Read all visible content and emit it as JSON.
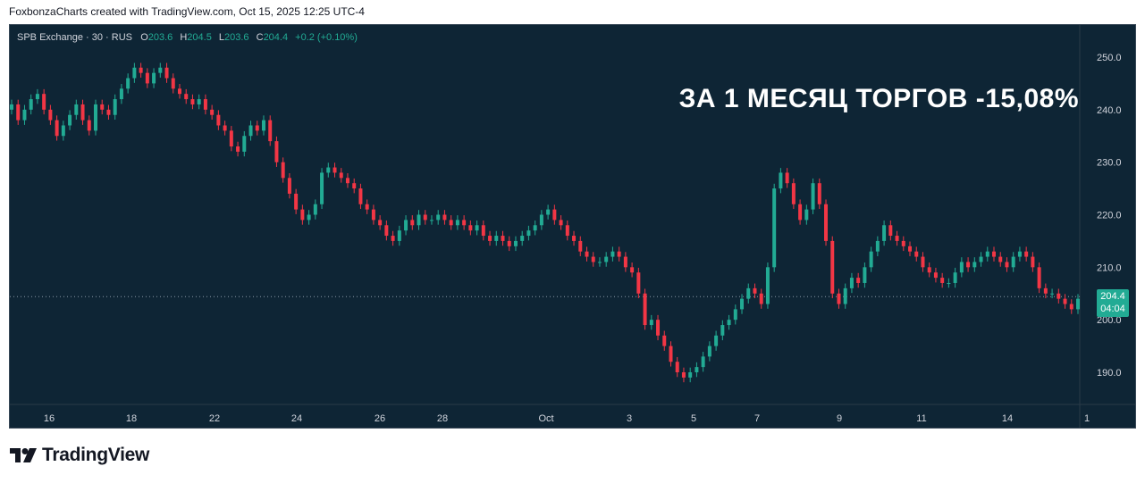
{
  "header": {
    "credit": "FoxbonzaCharts created with TradingView.com, Oct 15, 2025 12:25 UTC-4"
  },
  "legend": {
    "symbol": "SPB Exchange · 30 · RUS",
    "o_key": "O",
    "o_val": "203.6",
    "h_key": "H",
    "h_val": "204.5",
    "l_key": "L",
    "l_val": "203.6",
    "c_key": "C",
    "c_val": "204.4",
    "change": "+0.2 (+0.10%)"
  },
  "headline": "ЗА 1 МЕСЯЦ ТОРГОВ -15,08%",
  "last_price": {
    "price": "204.4",
    "countdown": "04:04"
  },
  "footer": {
    "brand": "TradingView"
  },
  "colors": {
    "background": "#0e2535",
    "up": "#22ab94",
    "down": "#f23645",
    "text": "#d1d4dc"
  },
  "chart_data": {
    "type": "line",
    "title": "",
    "subtitle": "",
    "xlabel": "",
    "ylabel": "",
    "ylim": [
      183,
      255
    ],
    "yticks": [
      "190.0",
      "200.0",
      "210.0",
      "220.0",
      "230.0",
      "240.0",
      "250.0"
    ],
    "xticks": [
      "16",
      "18",
      "22",
      "24",
      "26",
      "28",
      "Oct",
      "3",
      "5",
      "7",
      "9",
      "11",
      "14",
      "1"
    ],
    "grid": false,
    "current_price_line": 204.4,
    "series": [
      {
        "values": [
          241,
          238,
          240,
          242,
          243,
          240,
          238,
          235,
          237,
          239,
          241,
          238,
          236,
          241,
          240,
          239,
          242,
          244,
          246,
          248,
          247,
          245,
          247,
          248,
          246,
          244,
          243,
          242,
          241,
          242,
          240,
          239,
          237,
          236,
          233,
          232,
          235,
          237,
          236,
          238,
          234,
          230,
          227,
          224,
          221,
          219,
          220,
          222,
          228,
          229,
          228,
          227,
          226,
          225,
          222,
          221,
          219,
          218,
          216,
          215,
          217,
          219,
          218,
          220,
          219,
          219,
          220,
          219,
          218,
          219,
          218,
          217,
          218,
          216,
          215,
          216,
          215,
          214,
          215,
          216,
          217,
          218,
          220,
          221,
          219,
          218,
          216,
          215,
          213,
          212,
          211,
          211,
          212,
          213,
          212,
          210,
          209,
          205,
          199,
          200,
          197,
          195,
          192,
          190,
          189,
          190,
          191,
          193,
          195,
          197,
          199,
          200,
          202,
          204,
          206,
          205,
          203,
          210,
          225,
          228,
          226,
          222,
          219,
          221,
          226,
          222,
          215,
          205,
          203,
          206,
          208,
          207,
          210,
          213,
          215,
          218,
          216,
          215,
          214,
          213,
          212,
          210,
          209,
          208,
          207,
          207,
          209,
          211,
          210,
          211,
          212,
          213,
          212,
          211,
          210,
          212,
          213,
          212,
          210,
          206,
          205,
          205,
          204,
          203,
          202,
          204
        ]
      }
    ]
  }
}
